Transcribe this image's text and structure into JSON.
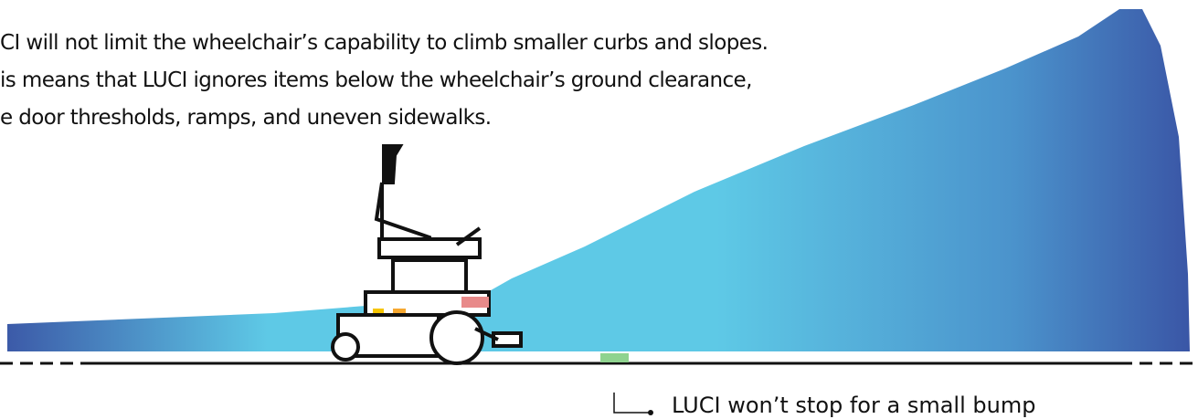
{
  "paragraph": [
    "CI will not limit the wheelchair’s capability to climb smaller curbs and slopes.",
    "is means that LUCI ignores items below the wheelchair’s ground clearance,",
    "e door thresholds, ramps, and uneven sidewalks."
  ],
  "annotation": "LUCI won’t stop for a small bump"
}
